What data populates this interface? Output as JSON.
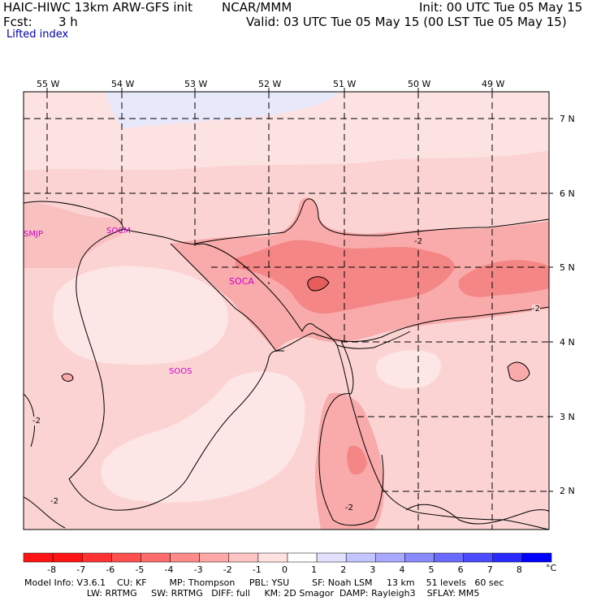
{
  "header": {
    "model": "HAIC-HIWC 13km ARW-GFS init",
    "org": "NCAR/MMM",
    "init": "Init: 00 UTC Tue 05 May 15",
    "fcst_label": "Fcst:",
    "fcst_value": "3 h",
    "valid": "Valid: 03 UTC Tue 05 May 15 (00 LST Tue 05 May 15)",
    "field": "Lifted index"
  },
  "map": {
    "lon_labels": [
      "55 W",
      "54 W",
      "53 W",
      "52 W",
      "51 W",
      "50 W",
      "49 W"
    ],
    "lat_labels": [
      "7 N",
      "6 N",
      "5 N",
      "4 N",
      "3 N",
      "2 N"
    ],
    "stations": [
      "SMJP",
      "SOCM",
      "SOCA",
      "SOOS"
    ],
    "contour_labels": [
      "-2",
      "-2",
      "-2",
      "-2",
      "-2"
    ]
  },
  "colorbar": {
    "ticks": [
      "-8",
      "-7",
      "-6",
      "-5",
      "-4",
      "-3",
      "-2",
      "-1",
      "0",
      "1",
      "2",
      "3",
      "4",
      "5",
      "6",
      "7",
      "8"
    ],
    "unit": "°C",
    "colors": [
      "#ff1414",
      "#ff3232",
      "#ff5050",
      "#ff6a6a",
      "#ff8a8a",
      "#ffa8a8",
      "#ffc4c4",
      "#ffe2e2",
      "#ffffff",
      "#e2e2ff",
      "#c4c4ff",
      "#a8a8ff",
      "#8a8aff",
      "#6a6aff",
      "#4b4bff",
      "#2a2aff",
      "#0000ff"
    ]
  },
  "model_info": {
    "line1": "Model Info: V3.6.1    CU: KF        MP: Thompson     PBL: YSU        SF: Noah LSM     13 km    51 levels   60 sec",
    "line2": "                      LW: RRTMG     SW: RRTMG   DIFF: full     KM: 2D Smagor  DAMP: Rayleigh3    SFLAY: MM5"
  },
  "colors": {
    "light_pink": "#fcd3d3",
    "very_light": "#fde6e6",
    "mid_pink": "#f9aaaa",
    "dark_pink": "#f48686",
    "station": "#cc00cc",
    "blue_tint": "#e8e8fb"
  }
}
